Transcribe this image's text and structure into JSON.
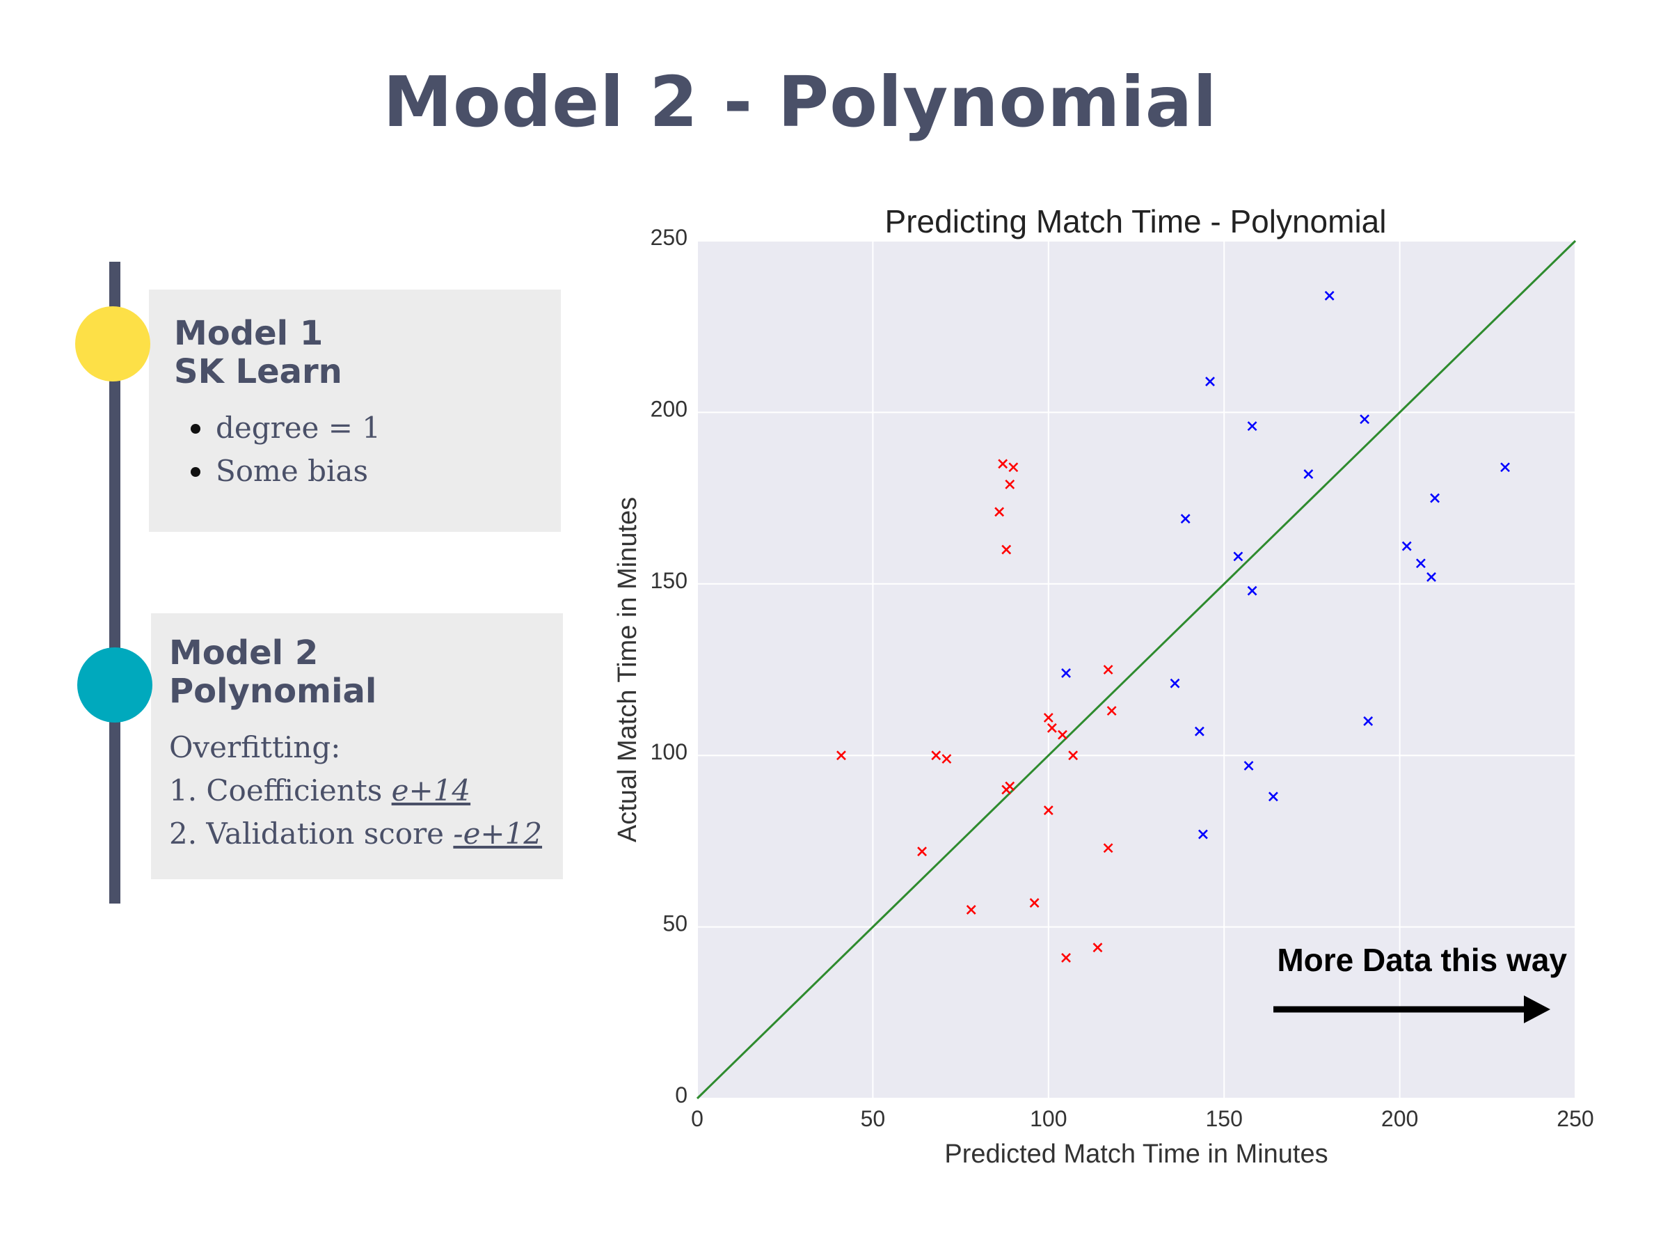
{
  "slide": {
    "title": "Model 2 - Polynomial"
  },
  "timeline": {
    "colors": {
      "bar": "#4a5068",
      "dot_1": "#fde047",
      "dot_2": "#00a9bd"
    },
    "model_1": {
      "heading_line_1": "Model 1",
      "heading_line_2": "SK Learn",
      "bullets": [
        "degree = 1",
        "Some bias"
      ]
    },
    "model_2": {
      "heading_line_1": "Model 2",
      "heading_line_2": "Polynomial",
      "line_1": "Overfitting:",
      "line_2_prefix": "1. Coefficients ",
      "line_2_emph": "e+14",
      "line_3_prefix": "2. Validation score ",
      "line_3_emph": "-e+12"
    }
  },
  "chart_data": {
    "type": "scatter",
    "title": "Predicting Match Time - Polynomial",
    "xlabel": "Predicted Match Time in Minutes",
    "ylabel": "Actual Match Time in Minutes",
    "xlim": [
      0,
      250
    ],
    "ylim": [
      0,
      250
    ],
    "xticks": [
      "0",
      "50",
      "100",
      "150",
      "200",
      "250"
    ],
    "yticks": [
      "0",
      "50",
      "100",
      "150",
      "200",
      "250"
    ],
    "grid": true,
    "colors": {
      "background": "#eaeaf2",
      "grid": "#ffffff",
      "line": "#2e8b2e",
      "red": "#ff0000",
      "blue": "#0000ff"
    },
    "reference_line": {
      "from": [
        0,
        0
      ],
      "to": [
        250,
        250
      ]
    },
    "series": [
      {
        "color": "#ff0000",
        "points": [
          [
            41,
            100
          ],
          [
            64,
            72
          ],
          [
            68,
            100
          ],
          [
            71,
            99
          ],
          [
            78,
            55
          ],
          [
            86,
            171
          ],
          [
            87,
            185
          ],
          [
            88,
            90
          ],
          [
            89,
            91
          ],
          [
            88,
            160
          ],
          [
            89,
            179
          ],
          [
            90,
            184
          ],
          [
            96,
            57
          ],
          [
            100,
            111
          ],
          [
            100,
            84
          ],
          [
            101,
            108
          ],
          [
            104,
            106
          ],
          [
            105,
            41
          ],
          [
            107,
            100
          ],
          [
            114,
            44
          ],
          [
            117,
            125
          ],
          [
            117,
            73
          ],
          [
            118,
            113
          ]
        ]
      },
      {
        "color": "#0000ff",
        "points": [
          [
            105,
            124
          ],
          [
            136,
            121
          ],
          [
            139,
            169
          ],
          [
            143,
            107
          ],
          [
            144,
            77
          ],
          [
            146,
            209
          ],
          [
            154,
            158
          ],
          [
            157,
            97
          ],
          [
            158,
            196
          ],
          [
            158,
            148
          ],
          [
            164,
            88
          ],
          [
            174,
            182
          ],
          [
            180,
            234
          ],
          [
            190,
            198
          ],
          [
            191,
            110
          ],
          [
            202,
            161
          ],
          [
            206,
            156
          ],
          [
            209,
            152
          ],
          [
            210,
            175
          ],
          [
            230,
            184
          ]
        ]
      }
    ],
    "annotation": {
      "text": "More Data this way"
    }
  }
}
